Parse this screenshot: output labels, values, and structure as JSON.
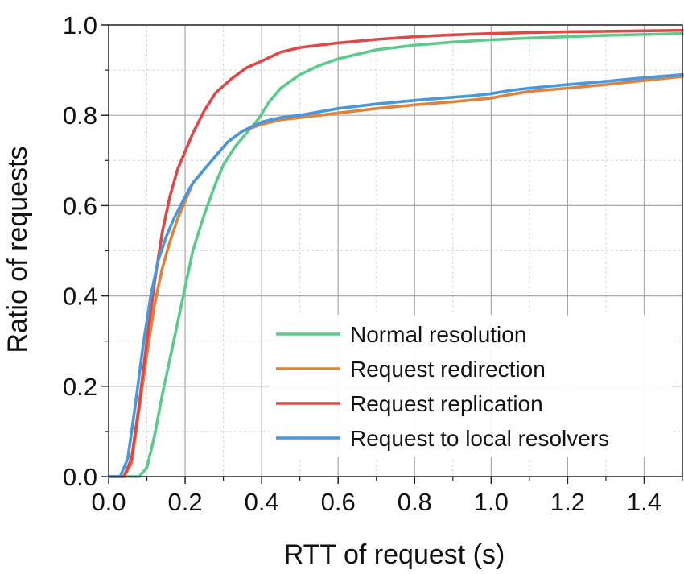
{
  "chart_data": {
    "type": "line",
    "title": "",
    "xlabel": "RTT of request (s)",
    "ylabel": "Ratio of requests",
    "xlim": [
      0,
      1.5
    ],
    "ylim": [
      0,
      1.0
    ],
    "xticks": [
      "0.0",
      "0.2",
      "0.4",
      "0.6",
      "0.8",
      "1.0",
      "1.2",
      "1.4"
    ],
    "yticks": [
      "0.0",
      "0.2",
      "0.4",
      "0.6",
      "0.8",
      "1.0"
    ],
    "grid": true,
    "legend_position": "bottom-right",
    "series": [
      {
        "name": "Normal resolution",
        "color": "#5ccb8a",
        "x": [
          0,
          0.08,
          0.1,
          0.12,
          0.14,
          0.16,
          0.18,
          0.2,
          0.22,
          0.25,
          0.28,
          0.3,
          0.33,
          0.36,
          0.39,
          0.42,
          0.45,
          0.5,
          0.55,
          0.6,
          0.7,
          0.8,
          0.9,
          1.0,
          1.1,
          1.2,
          1.3,
          1.4,
          1.5
        ],
        "y": [
          0,
          0,
          0.02,
          0.09,
          0.18,
          0.26,
          0.34,
          0.42,
          0.5,
          0.58,
          0.65,
          0.69,
          0.73,
          0.76,
          0.79,
          0.83,
          0.86,
          0.89,
          0.91,
          0.925,
          0.945,
          0.955,
          0.962,
          0.967,
          0.971,
          0.974,
          0.977,
          0.979,
          0.981
        ]
      },
      {
        "name": "Request redirection",
        "color": "#e0813c",
        "x": [
          0,
          0.04,
          0.06,
          0.08,
          0.1,
          0.12,
          0.14,
          0.16,
          0.18,
          0.2,
          0.22,
          0.25,
          0.28,
          0.31,
          0.35,
          0.4,
          0.45,
          0.5,
          0.6,
          0.7,
          0.8,
          0.9,
          1.0,
          1.05,
          1.1,
          1.2,
          1.3,
          1.4,
          1.5
        ],
        "y": [
          0,
          0,
          0.03,
          0.15,
          0.27,
          0.38,
          0.46,
          0.52,
          0.57,
          0.61,
          0.65,
          0.68,
          0.71,
          0.74,
          0.765,
          0.78,
          0.79,
          0.795,
          0.805,
          0.815,
          0.823,
          0.83,
          0.838,
          0.846,
          0.853,
          0.86,
          0.868,
          0.877,
          0.886
        ]
      },
      {
        "name": "Request replication",
        "color": "#e04848",
        "x": [
          0,
          0.04,
          0.06,
          0.08,
          0.1,
          0.12,
          0.14,
          0.16,
          0.18,
          0.2,
          0.22,
          0.25,
          0.28,
          0.32,
          0.36,
          0.4,
          0.45,
          0.5,
          0.6,
          0.7,
          0.8,
          0.9,
          1.0,
          1.1,
          1.2,
          1.3,
          1.4,
          1.5
        ],
        "y": [
          0,
          0,
          0.04,
          0.16,
          0.3,
          0.43,
          0.54,
          0.62,
          0.68,
          0.72,
          0.76,
          0.81,
          0.85,
          0.88,
          0.905,
          0.92,
          0.94,
          0.95,
          0.96,
          0.968,
          0.974,
          0.978,
          0.981,
          0.983,
          0.985,
          0.986,
          0.987,
          0.988
        ]
      },
      {
        "name": "Request to local resolvers",
        "color": "#4898e0",
        "x": [
          0,
          0.03,
          0.05,
          0.07,
          0.09,
          0.11,
          0.13,
          0.15,
          0.17,
          0.2,
          0.22,
          0.25,
          0.28,
          0.31,
          0.35,
          0.4,
          0.45,
          0.5,
          0.6,
          0.7,
          0.8,
          0.9,
          0.95,
          1.0,
          1.05,
          1.1,
          1.2,
          1.3,
          1.4,
          1.5
        ],
        "y": [
          0,
          0,
          0.04,
          0.16,
          0.29,
          0.4,
          0.48,
          0.53,
          0.57,
          0.62,
          0.65,
          0.68,
          0.71,
          0.74,
          0.765,
          0.785,
          0.795,
          0.8,
          0.815,
          0.825,
          0.833,
          0.84,
          0.843,
          0.848,
          0.855,
          0.86,
          0.868,
          0.875,
          0.883,
          0.89
        ]
      }
    ]
  }
}
